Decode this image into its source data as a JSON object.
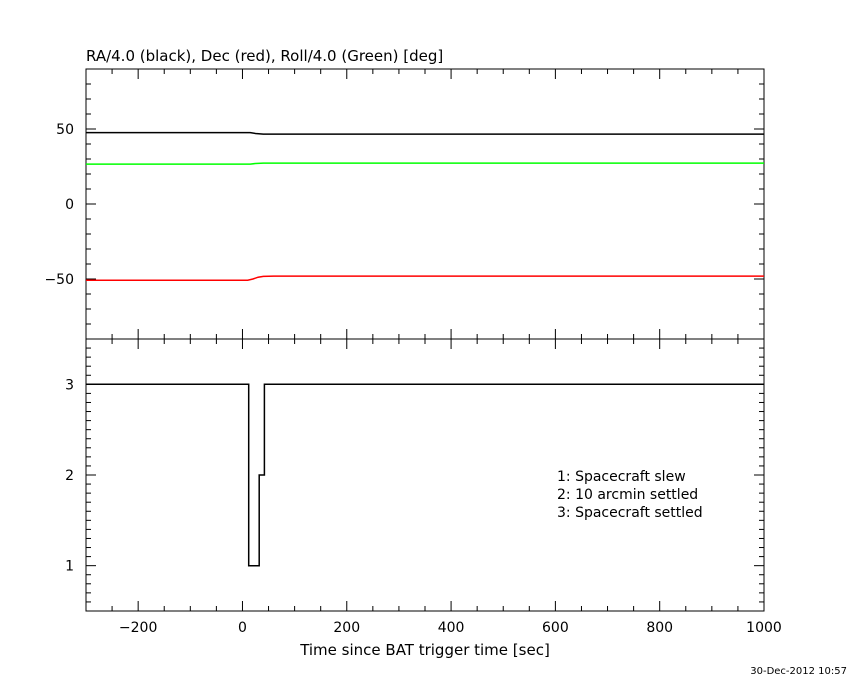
{
  "chart_data": [
    {
      "type": "line",
      "title": "RA/4.0 (black), Dec (red), Roll/4.0 (Green) [deg]",
      "xlim": [
        -300,
        1000
      ],
      "ylim": [
        -90,
        90
      ],
      "y_ticks": [
        -50,
        0,
        50
      ],
      "y_tick_labels": [
        "−50",
        "0",
        "50"
      ],
      "series": [
        {
          "color": "#000000",
          "x": [
            -300,
            15,
            25,
            40,
            1000
          ],
          "y": [
            47.6,
            47.6,
            47.0,
            46.6,
            46.6
          ]
        },
        {
          "color": "#00ff00",
          "x": [
            -300,
            15,
            25,
            40,
            1000
          ],
          "y": [
            26.6,
            26.6,
            27.0,
            27.3,
            27.3
          ]
        },
        {
          "color": "#ff0000",
          "x": [
            -300,
            10,
            20,
            30,
            40,
            60,
            1000
          ],
          "y": [
            -50.8,
            -50.8,
            -50.0,
            -48.8,
            -48.3,
            -48.1,
            -48.1
          ]
        }
      ]
    },
    {
      "type": "line",
      "xlim": [
        -300,
        1000
      ],
      "ylim": [
        0.5,
        3.5
      ],
      "y_ticks": [
        1,
        2,
        3
      ],
      "y_tick_labels": [
        "1",
        "2",
        "3"
      ],
      "x_ticks": [
        -200,
        0,
        200,
        400,
        600,
        800,
        1000
      ],
      "x_tick_labels": [
        "−200",
        "0",
        "200",
        "400",
        "600",
        "800",
        "1000"
      ],
      "xlabel": "Time since BAT trigger time [sec]",
      "legend": [
        "1: Spacecraft slew",
        "2: 10 arcmin settled",
        "3: Spacecraft settled"
      ],
      "series": [
        {
          "color": "#000000",
          "step": true,
          "x": [
            -300,
            12,
            12,
            32,
            32,
            42,
            42,
            1000
          ],
          "y": [
            3,
            3,
            1,
            1,
            2,
            2,
            3,
            3
          ]
        }
      ]
    }
  ],
  "timestamp": "30-Dec-2012 10:57"
}
